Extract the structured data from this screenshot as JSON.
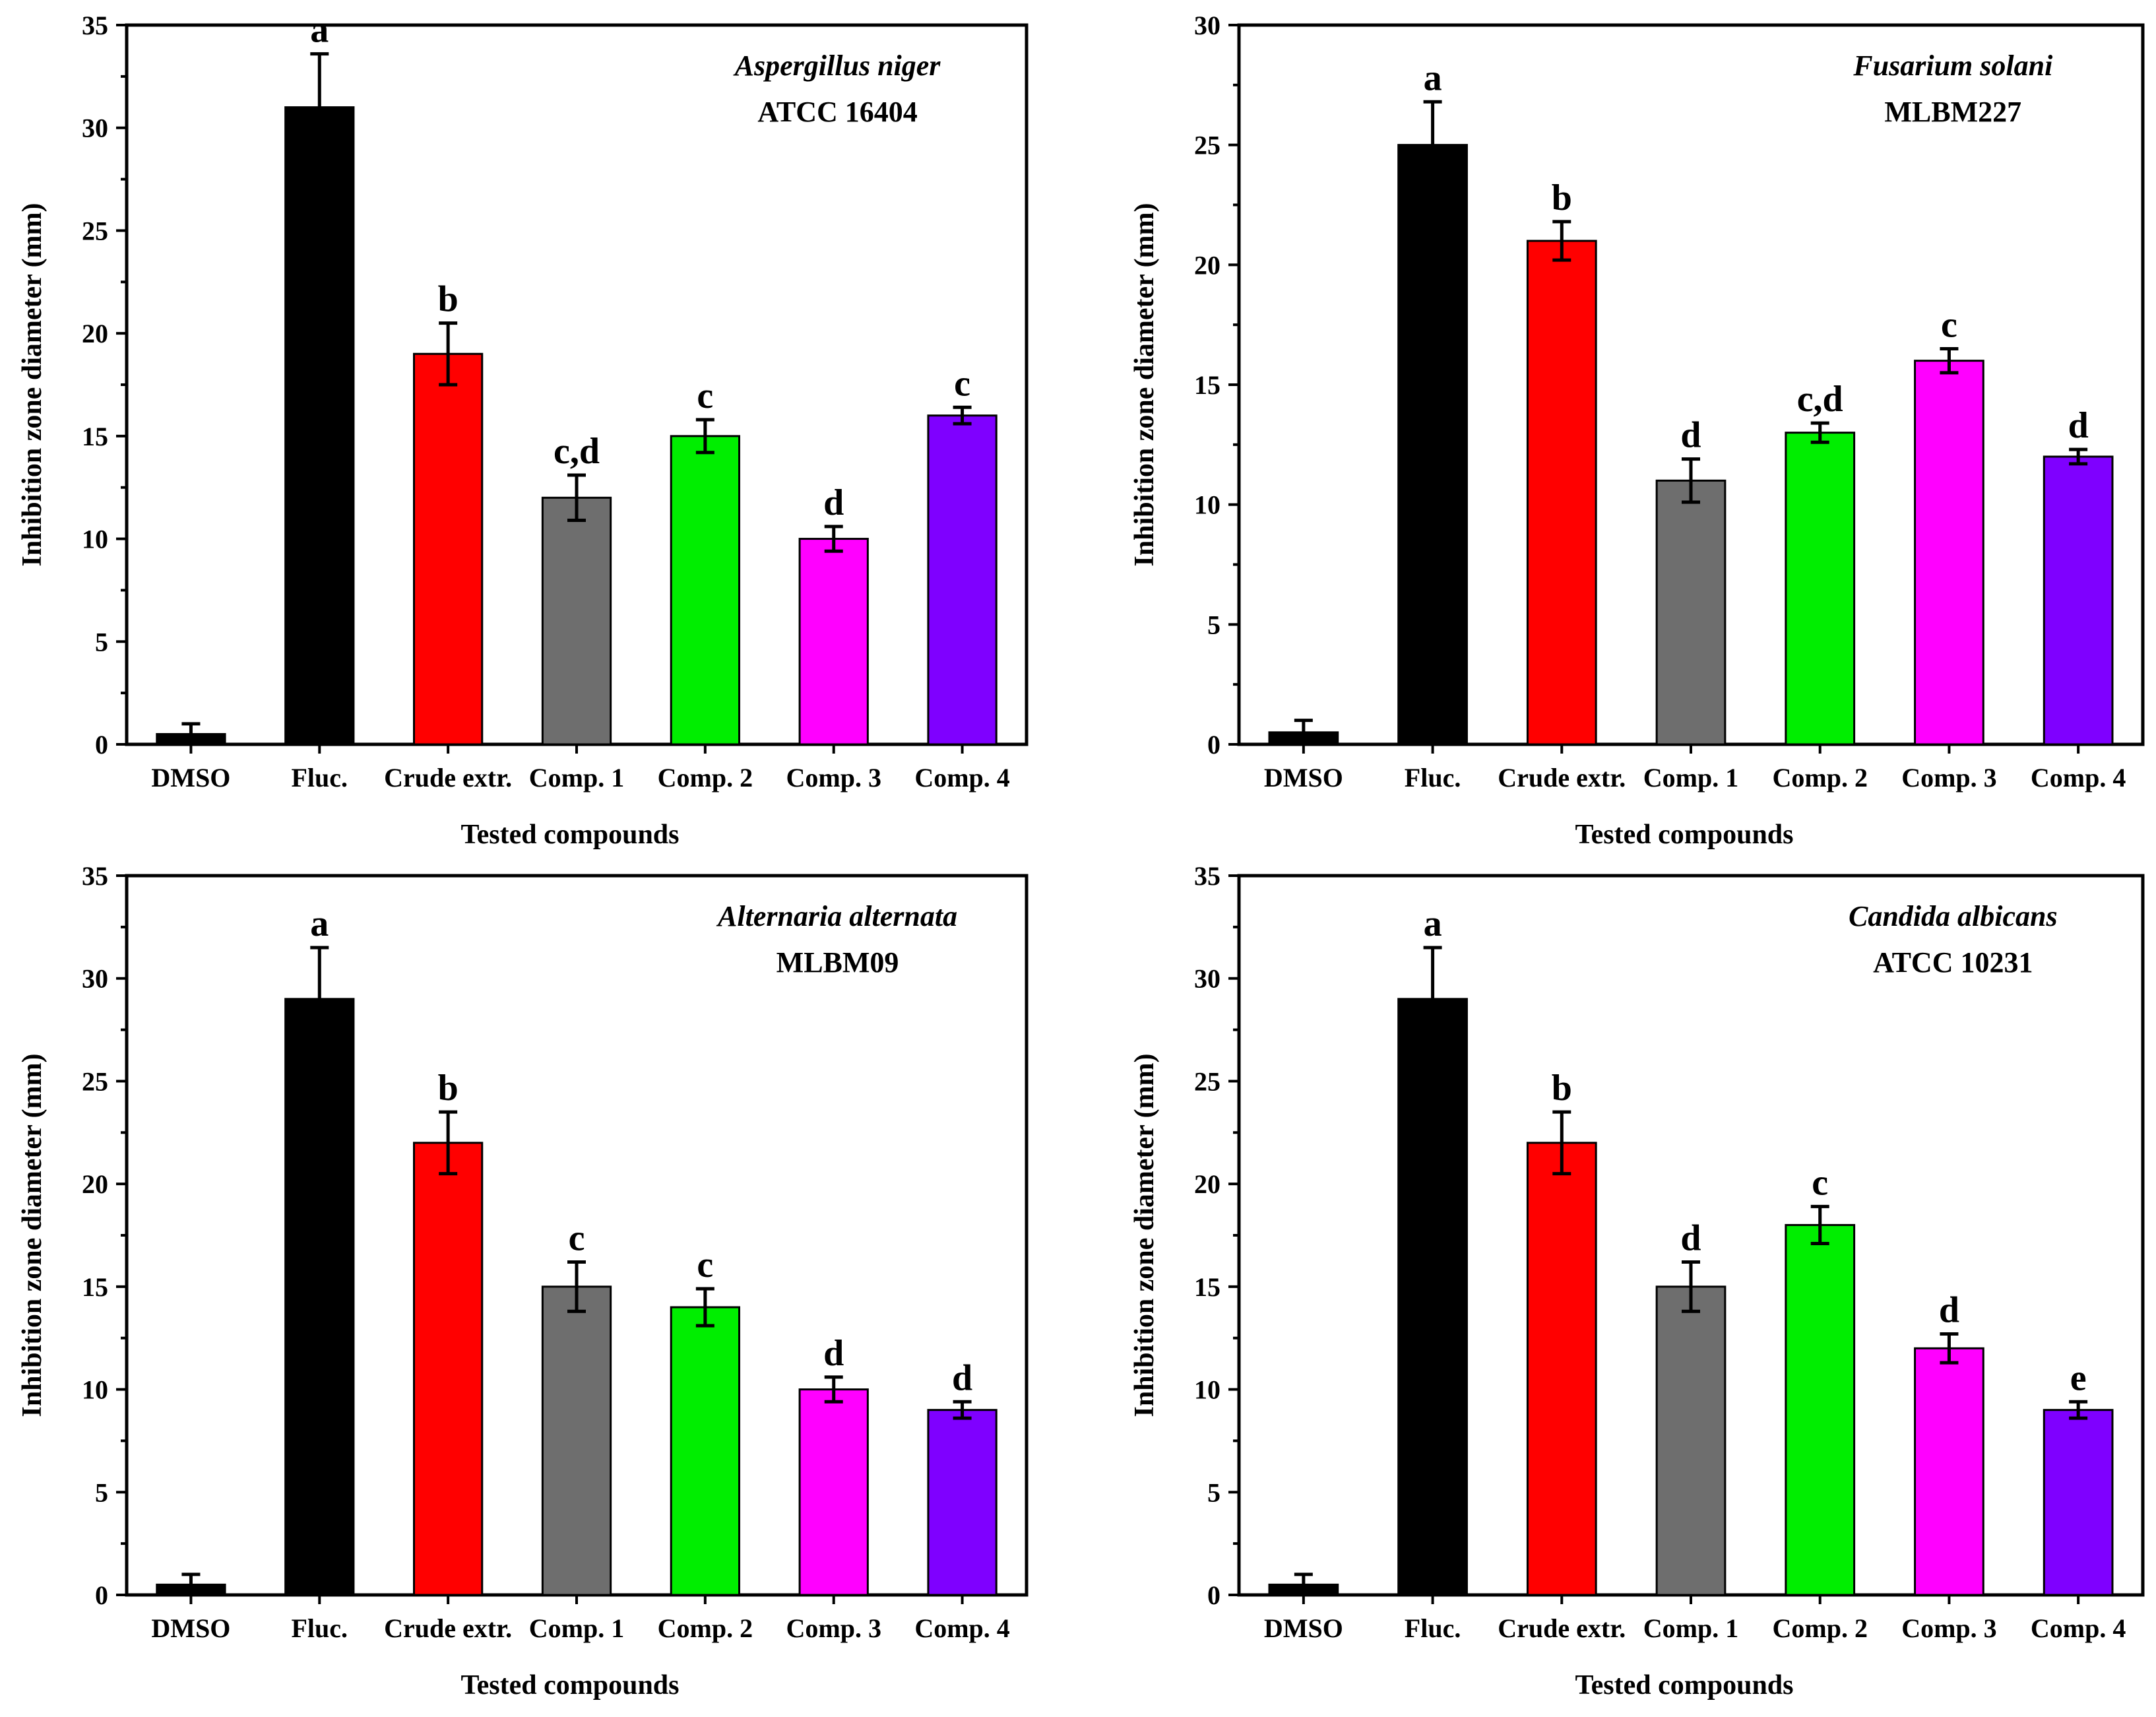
{
  "chart_data": [
    {
      "type": "bar",
      "organism": "Aspergillus niger",
      "strain": "ATCC 16404",
      "categories": [
        "DMSO",
        "Fluc.",
        "Crude extr.",
        "Comp. 1",
        "Comp. 2",
        "Comp. 3",
        "Comp. 4"
      ],
      "values": [
        0.5,
        31,
        19,
        12,
        15,
        10,
        16
      ],
      "errors": [
        0.5,
        2.6,
        1.5,
        1.1,
        0.8,
        0.6,
        0.4
      ],
      "significance": [
        "",
        "a",
        "b",
        "c,d",
        "c",
        "d",
        "c"
      ],
      "colors": [
        "#000000",
        "#000000",
        "#ff0000",
        "#6e6e6e",
        "#00ee00",
        "#ff00ff",
        "#7f00ff"
      ],
      "xlabel": "Tested compounds",
      "ylabel": "Inhibition zone diameter (mm)",
      "ylim": [
        0,
        35
      ],
      "yticks": [
        0,
        5,
        10,
        15,
        20,
        25,
        30,
        35
      ]
    },
    {
      "type": "bar",
      "organism": "Fusarium solani",
      "strain": "MLBM227",
      "categories": [
        "DMSO",
        "Fluc.",
        "Crude extr.",
        "Comp. 1",
        "Comp. 2",
        "Comp. 3",
        "Comp. 4"
      ],
      "values": [
        0.5,
        25,
        21,
        11,
        13,
        16,
        12
      ],
      "errors": [
        0.5,
        1.8,
        0.8,
        0.9,
        0.4,
        0.5,
        0.3
      ],
      "significance": [
        "",
        "a",
        "b",
        "d",
        "c,d",
        "c",
        "d"
      ],
      "colors": [
        "#000000",
        "#000000",
        "#ff0000",
        "#6e6e6e",
        "#00ee00",
        "#ff00ff",
        "#7f00ff"
      ],
      "xlabel": "Tested compounds",
      "ylabel": "Inhibition zone diameter (mm)",
      "ylim": [
        0,
        30
      ],
      "yticks": [
        0,
        5,
        10,
        15,
        20,
        25,
        30
      ]
    },
    {
      "type": "bar",
      "organism": "Alternaria alternata",
      "strain": "MLBM09",
      "categories": [
        "DMSO",
        "Fluc.",
        "Crude extr.",
        "Comp. 1",
        "Comp. 2",
        "Comp. 3",
        "Comp. 4"
      ],
      "values": [
        0.5,
        29,
        22,
        15,
        14,
        10,
        9
      ],
      "errors": [
        0.5,
        2.5,
        1.5,
        1.2,
        0.9,
        0.6,
        0.4
      ],
      "significance": [
        "",
        "a",
        "b",
        "c",
        "c",
        "d",
        "d"
      ],
      "colors": [
        "#000000",
        "#000000",
        "#ff0000",
        "#6e6e6e",
        "#00ee00",
        "#ff00ff",
        "#7f00ff"
      ],
      "xlabel": "Tested compounds",
      "ylabel": "Inhibition zone diameter (mm)",
      "ylim": [
        0,
        35
      ],
      "yticks": [
        0,
        5,
        10,
        15,
        20,
        25,
        30,
        35
      ]
    },
    {
      "type": "bar",
      "organism": "Candida albicans",
      "strain": "ATCC 10231",
      "categories": [
        "DMSO",
        "Fluc.",
        "Crude extr.",
        "Comp. 1",
        "Comp. 2",
        "Comp. 3",
        "Comp. 4"
      ],
      "values": [
        0.5,
        29,
        22,
        15,
        18,
        12,
        9
      ],
      "errors": [
        0.5,
        2.5,
        1.5,
        1.2,
        0.9,
        0.7,
        0.4
      ],
      "significance": [
        "",
        "a",
        "b",
        "d",
        "c",
        "d",
        "e"
      ],
      "colors": [
        "#000000",
        "#000000",
        "#ff0000",
        "#6e6e6e",
        "#00ee00",
        "#ff00ff",
        "#7f00ff"
      ],
      "xlabel": "Tested compounds",
      "ylabel": "Inhibition zone diameter (mm)",
      "ylim": [
        0,
        35
      ],
      "yticks": [
        0,
        5,
        10,
        15,
        20,
        25,
        30,
        35
      ]
    }
  ]
}
